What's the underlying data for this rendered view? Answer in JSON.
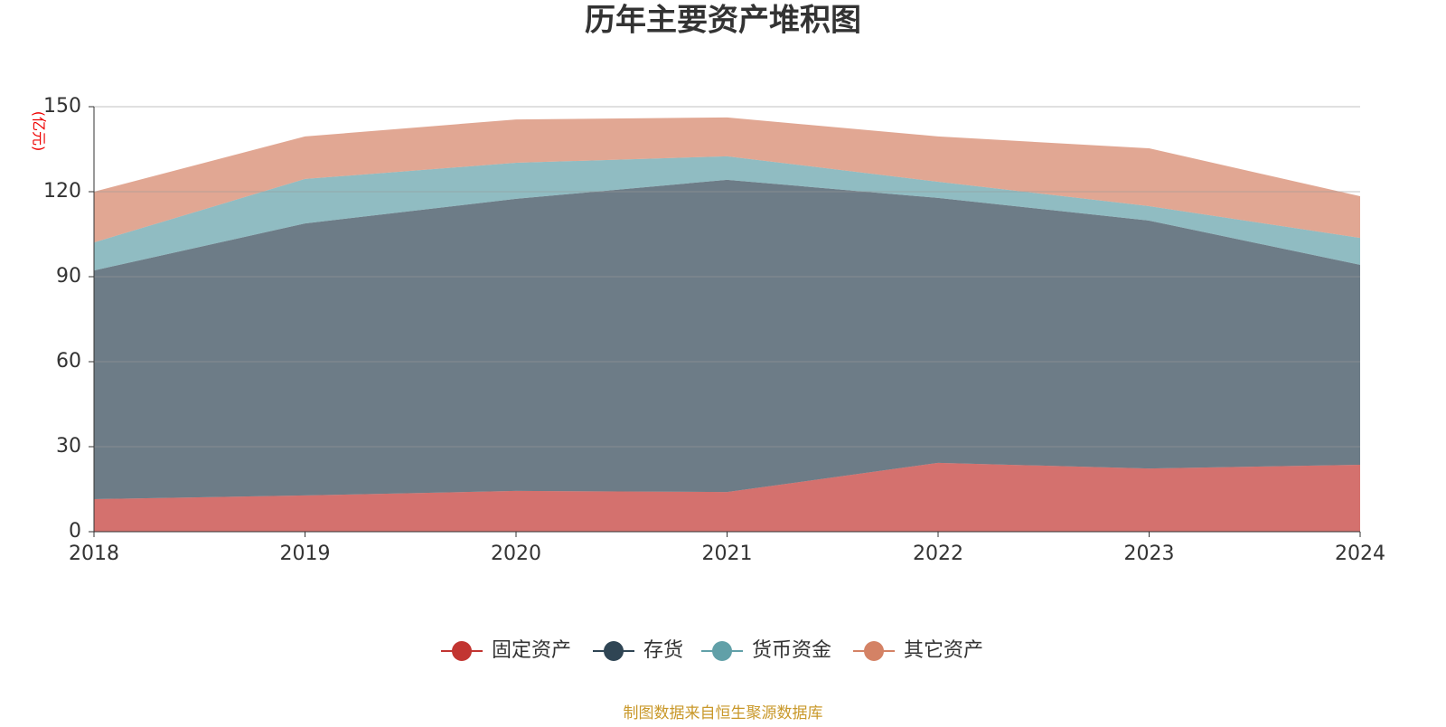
{
  "chart_data": {
    "type": "stacked-area",
    "title": "历年主要资产堆积图",
    "y_label": "(亿元)",
    "categories": [
      "2018",
      "2019",
      "2020",
      "2021",
      "2022",
      "2023",
      "2024"
    ],
    "series": [
      {
        "name": "固定资产",
        "color": "#c23531",
        "values": [
          11.5,
          12.8,
          14.4,
          14.0,
          24.3,
          22.3,
          23.6
        ]
      },
      {
        "name": "存货",
        "color": "#2f4554",
        "values": [
          80.7,
          96.0,
          103.1,
          110.2,
          93.5,
          87.5,
          70.6
        ]
      },
      {
        "name": "货币资金",
        "color": "#61a0a8",
        "values": [
          9.9,
          15.7,
          12.7,
          8.3,
          5.7,
          5.1,
          9.5
        ]
      },
      {
        "name": "其它资产",
        "color": "#d48265",
        "values": [
          17.9,
          15.0,
          15.3,
          13.7,
          16.0,
          20.4,
          14.7
        ]
      }
    ],
    "ylim": [
      0,
      150
    ],
    "yticks": [
      0,
      30,
      60,
      90,
      120,
      150
    ],
    "grid": true,
    "source": "制图数据来自恒生聚源数据库"
  }
}
